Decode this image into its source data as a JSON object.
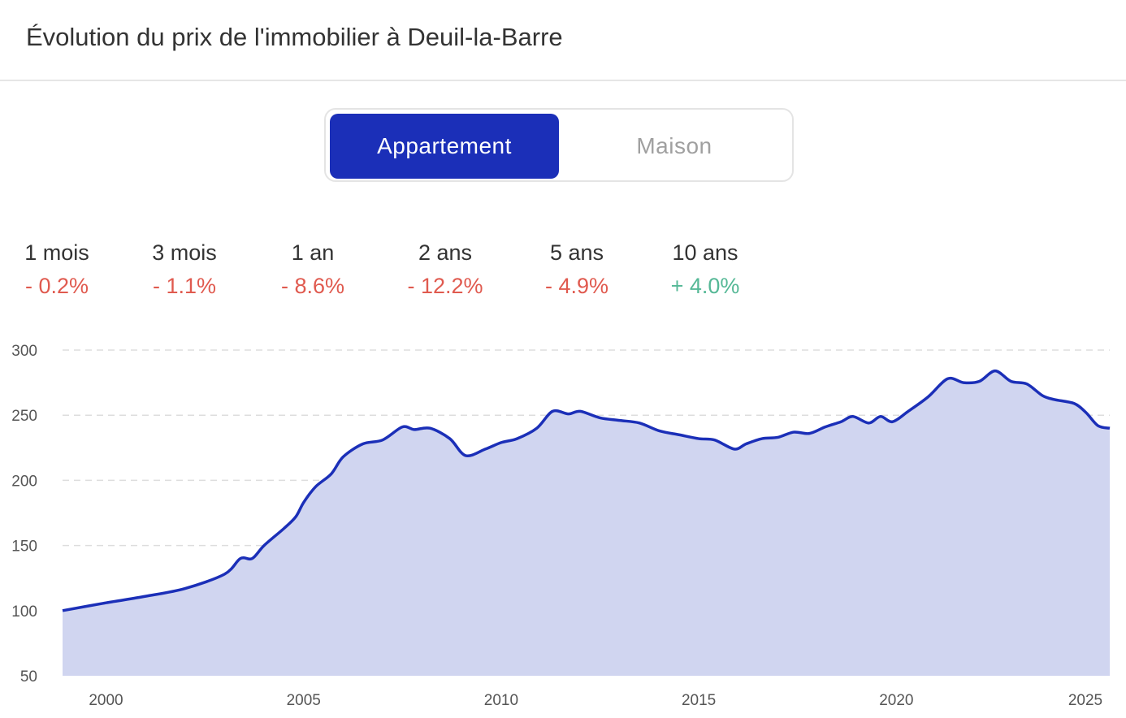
{
  "header": {
    "title": "Évolution du prix de l'immobilier à Deuil-la-Barre"
  },
  "toggle": {
    "options": [
      "Appartement",
      "Maison"
    ],
    "selected": "Appartement"
  },
  "stats": [
    {
      "label": "1 mois",
      "value": "- 0.2%",
      "trend": "down"
    },
    {
      "label": "3 mois",
      "value": "- 1.1%",
      "trend": "down"
    },
    {
      "label": "1 an",
      "value": "- 8.6%",
      "trend": "down"
    },
    {
      "label": "2 ans",
      "value": "- 12.2%",
      "trend": "down"
    },
    {
      "label": "5 ans",
      "value": "- 4.9%",
      "trend": "down"
    },
    {
      "label": "10 ans",
      "value": "+ 4.0%",
      "trend": "up"
    }
  ],
  "colors": {
    "accent": "#1b2fb8",
    "area_fill": "#d0d5f0",
    "negative": "#e05a4f",
    "positive": "#55b896",
    "grid": "#dddddd"
  },
  "chart_data": {
    "type": "area",
    "xlim": [
      1998.9,
      2025.4
    ],
    "ylim": [
      50,
      300
    ],
    "yticks": [
      50,
      100,
      150,
      200,
      250,
      300
    ],
    "xticks": [
      2000,
      2005,
      2010,
      2015,
      2020,
      2025
    ],
    "grid": true,
    "legend": false,
    "x": [
      1998.9,
      2000,
      2001,
      2002,
      2003,
      2003.4,
      2003.7,
      2004,
      2004.5,
      2004.8,
      2005,
      2005.3,
      2005.7,
      2006,
      2006.5,
      2007,
      2007.5,
      2007.8,
      2008.2,
      2008.7,
      2009.1,
      2009.6,
      2010,
      2010.4,
      2010.9,
      2011.3,
      2011.7,
      2012,
      2012.5,
      2013,
      2013.5,
      2014,
      2014.5,
      2015,
      2015.4,
      2015.9,
      2016.2,
      2016.6,
      2017,
      2017.4,
      2017.8,
      2018.2,
      2018.6,
      2018.9,
      2019.3,
      2019.6,
      2019.9,
      2020.3,
      2020.8,
      2021.3,
      2021.7,
      2022.1,
      2022.5,
      2022.9,
      2023.3,
      2023.7,
      2024,
      2024.5,
      2024.8,
      2025.1,
      2025.4
    ],
    "y": [
      100,
      106,
      111,
      117,
      128,
      140,
      140,
      150,
      163,
      172,
      183,
      195,
      205,
      218,
      228,
      231,
      241,
      239,
      240,
      232,
      219,
      224,
      229,
      232,
      240,
      253,
      251,
      253,
      248,
      246,
      244,
      238,
      235,
      232,
      231,
      224,
      228,
      232,
      233,
      237,
      236,
      241,
      245,
      249,
      244,
      249,
      245,
      253,
      264,
      278,
      275,
      276,
      284,
      276,
      274,
      265,
      262,
      259,
      252,
      242,
      240
    ]
  }
}
